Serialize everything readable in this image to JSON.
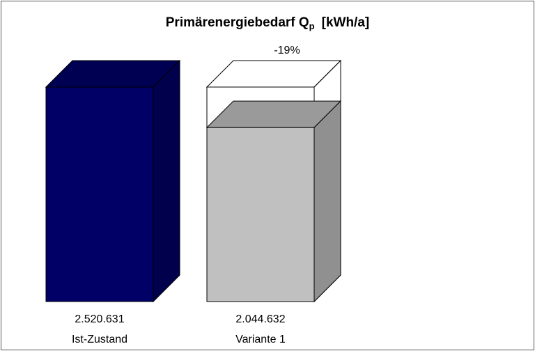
{
  "chart_data": {
    "type": "bar3d",
    "title": "Primärenergiebedarf Q",
    "title_subscript": "p",
    "title_unit": "[kWh/a]",
    "categories": [
      "Ist-Zustand",
      "Variante 1"
    ],
    "values": [
      2520631,
      2044632
    ],
    "value_labels": [
      "2.520.631",
      "2.044.632"
    ],
    "colors": [
      "#000066",
      "#c0c0c0"
    ],
    "annotation": "-19%"
  }
}
